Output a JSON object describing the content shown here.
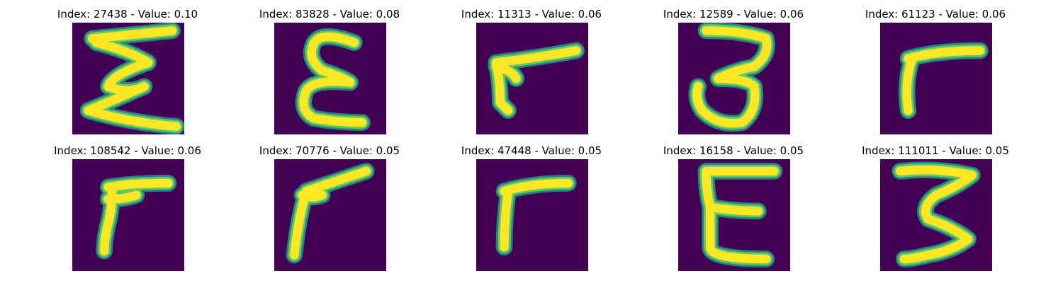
{
  "colors": {
    "background": "#440154",
    "stroke_edge": "#21918c",
    "stroke_mid": "#5ec962",
    "stroke_core": "#fde725"
  },
  "panels": [
    {
      "title": "Index: 27438 - Value: 0.10",
      "digit_shape": "epsilon-zigzag"
    },
    {
      "title": "Index: 83828 - Value: 0.08",
      "digit_shape": "epsilon"
    },
    {
      "title": "Index: 11313 - Value: 0.06",
      "digit_shape": "seven-like-stroke"
    },
    {
      "title": "Index: 12589 - Value: 0.06",
      "digit_shape": "three"
    },
    {
      "title": "Index: 61123 - Value: 0.06",
      "digit_shape": "hook"
    },
    {
      "title": "Index: 108542 - Value: 0.06",
      "digit_shape": "hook-thick"
    },
    {
      "title": "Index: 70776 - Value: 0.05",
      "digit_shape": "slanted-hook"
    },
    {
      "title": "Index: 47448 - Value: 0.05",
      "digit_shape": "hook"
    },
    {
      "title": "Index: 16158 - Value: 0.05",
      "digit_shape": "epsilon-thick"
    },
    {
      "title": "Index: 111011 - Value: 0.05",
      "digit_shape": "three-mirrored"
    }
  ]
}
